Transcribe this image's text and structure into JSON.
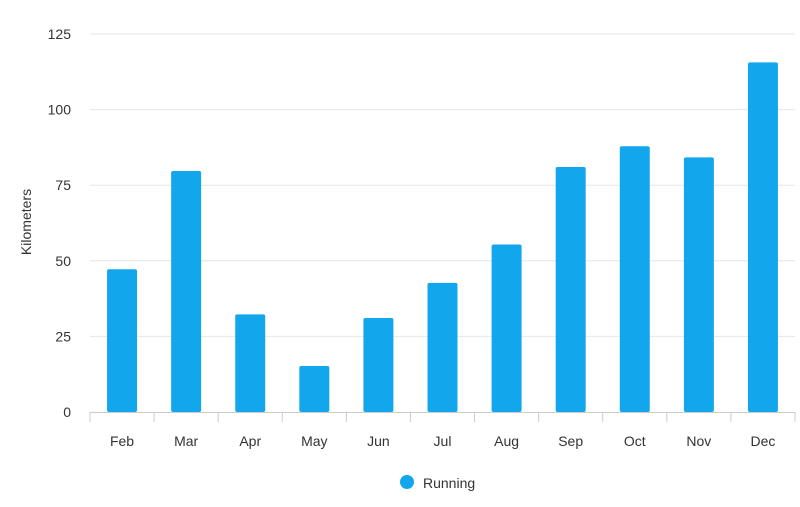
{
  "chart_data": {
    "type": "bar",
    "categories": [
      "Feb",
      "Mar",
      "Apr",
      "May",
      "Jun",
      "Jul",
      "Aug",
      "Sep",
      "Oct",
      "Nov",
      "Dec"
    ],
    "series": [
      {
        "name": "Running",
        "values": [
          47.2,
          79.7,
          32.3,
          15.2,
          31.1,
          42.7,
          55.4,
          81.0,
          87.9,
          84.2,
          115.6
        ],
        "color": "#12a7ec"
      }
    ],
    "title": "",
    "xlabel": "",
    "ylabel": "Kilometers",
    "ylim": [
      0,
      125
    ],
    "yticks": [
      0,
      25,
      50,
      75,
      100,
      125
    ],
    "grid": true,
    "legend": "bottom-center"
  }
}
